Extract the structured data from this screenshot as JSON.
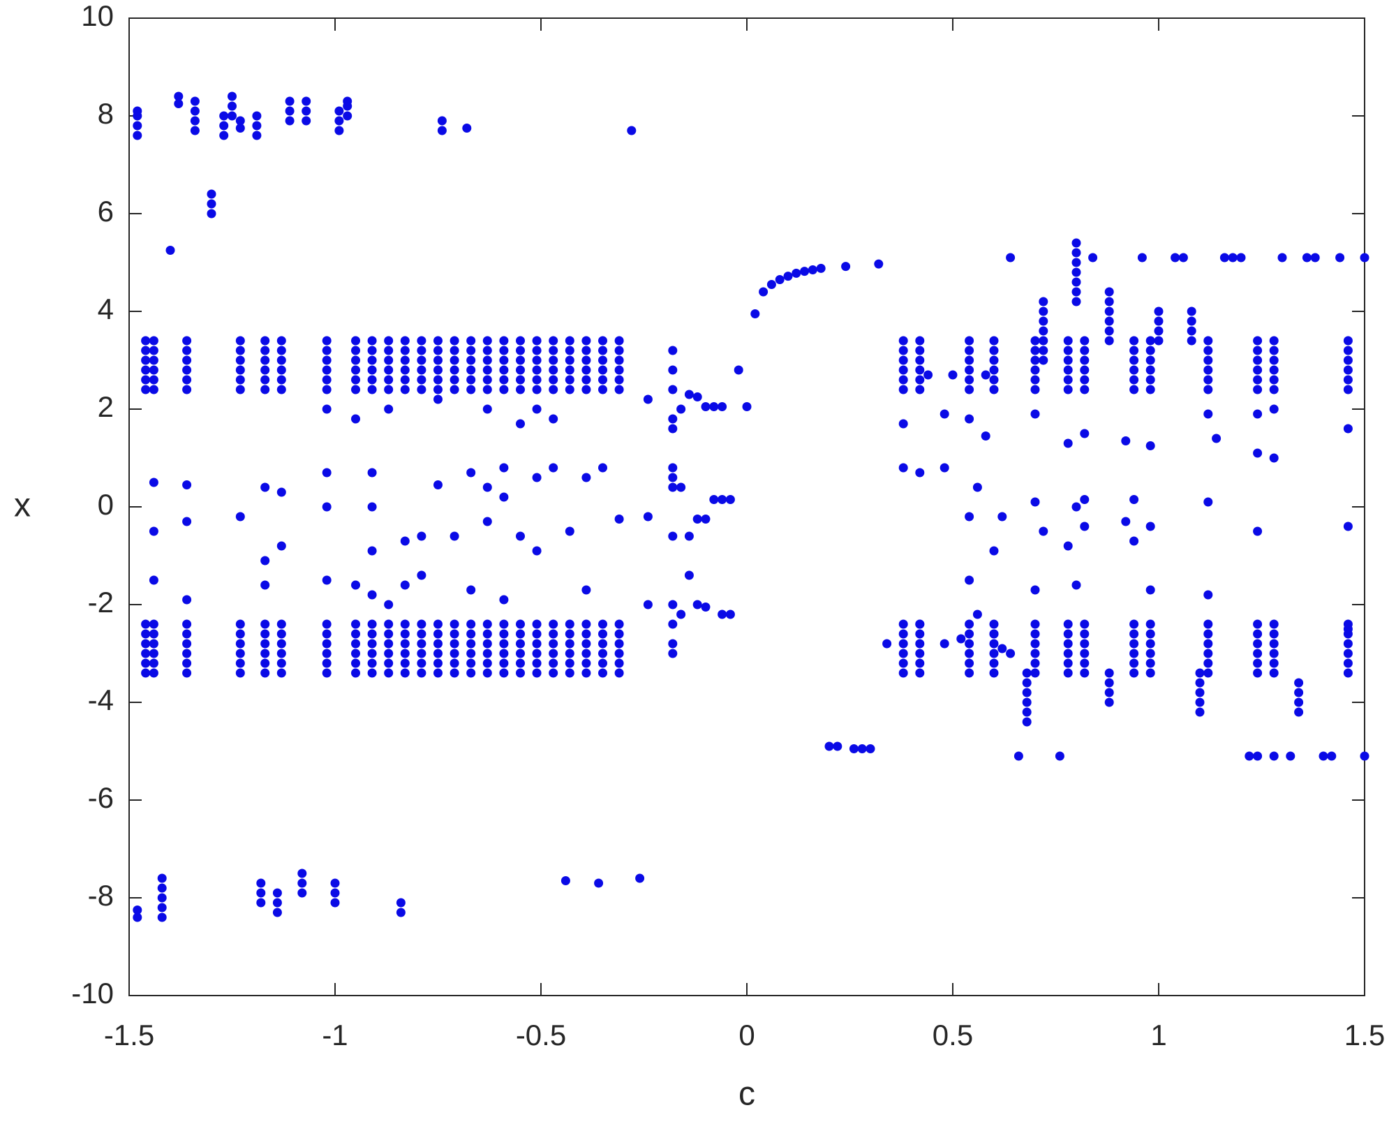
{
  "chart_data": {
    "type": "scatter",
    "xlabel": "c",
    "ylabel": "x",
    "color": "#0a0ae6",
    "xlim": [
      -1.5,
      1.5
    ],
    "ylim": [
      -10,
      10
    ],
    "xticks": [
      -1.5,
      -1,
      -0.5,
      0,
      0.5,
      1,
      1.5
    ],
    "yticks": [
      -10,
      -8,
      -6,
      -4,
      -2,
      0,
      2,
      4,
      6,
      8,
      10
    ],
    "x": [
      -1.46,
      -1.46,
      -1.46,
      -1.46,
      -1.46,
      -1.46,
      -1.46,
      -1.46,
      -1.46,
      -1.46,
      -1.46,
      -1.46,
      -1.44,
      -1.44,
      -1.44,
      -1.44,
      -1.44,
      -1.44,
      -1.44,
      -1.44,
      -1.44,
      -1.44,
      -1.44,
      -1.44,
      -1.36,
      -1.36,
      -1.36,
      -1.36,
      -1.36,
      -1.36,
      -1.36,
      -1.36,
      -1.36,
      -1.36,
      -1.36,
      -1.36,
      -1.23,
      -1.23,
      -1.23,
      -1.23,
      -1.23,
      -1.23,
      -1.23,
      -1.23,
      -1.23,
      -1.23,
      -1.23,
      -1.23,
      -1.17,
      -1.17,
      -1.17,
      -1.17,
      -1.17,
      -1.17,
      -1.17,
      -1.17,
      -1.17,
      -1.17,
      -1.17,
      -1.17,
      -1.13,
      -1.13,
      -1.13,
      -1.13,
      -1.13,
      -1.13,
      -1.13,
      -1.13,
      -1.13,
      -1.13,
      -1.13,
      -1.13,
      -1.02,
      -1.02,
      -1.02,
      -1.02,
      -1.02,
      -1.02,
      -1.02,
      -1.02,
      -1.02,
      -1.02,
      -1.02,
      -1.02,
      -0.95,
      -0.95,
      -0.95,
      -0.95,
      -0.95,
      -0.95,
      -0.95,
      -0.95,
      -0.95,
      -0.95,
      -0.95,
      -0.95,
      -0.91,
      -0.91,
      -0.91,
      -0.91,
      -0.91,
      -0.91,
      -0.91,
      -0.91,
      -0.91,
      -0.91,
      -0.91,
      -0.91,
      -0.87,
      -0.87,
      -0.87,
      -0.87,
      -0.87,
      -0.87,
      -0.87,
      -0.87,
      -0.87,
      -0.87,
      -0.87,
      -0.87,
      -0.83,
      -0.83,
      -0.83,
      -0.83,
      -0.83,
      -0.83,
      -0.83,
      -0.83,
      -0.83,
      -0.83,
      -0.83,
      -0.83,
      -0.79,
      -0.79,
      -0.79,
      -0.79,
      -0.79,
      -0.79,
      -0.79,
      -0.79,
      -0.79,
      -0.79,
      -0.79,
      -0.79,
      -0.75,
      -0.75,
      -0.75,
      -0.75,
      -0.75,
      -0.75,
      -0.75,
      -0.75,
      -0.75,
      -0.75,
      -0.75,
      -0.75,
      -0.71,
      -0.71,
      -0.71,
      -0.71,
      -0.71,
      -0.71,
      -0.71,
      -0.71,
      -0.71,
      -0.71,
      -0.71,
      -0.71,
      -0.67,
      -0.67,
      -0.67,
      -0.67,
      -0.67,
      -0.67,
      -0.67,
      -0.67,
      -0.67,
      -0.67,
      -0.67,
      -0.67,
      -0.63,
      -0.63,
      -0.63,
      -0.63,
      -0.63,
      -0.63,
      -0.63,
      -0.63,
      -0.63,
      -0.63,
      -0.63,
      -0.63,
      -0.59,
      -0.59,
      -0.59,
      -0.59,
      -0.59,
      -0.59,
      -0.59,
      -0.59,
      -0.59,
      -0.59,
      -0.59,
      -0.59,
      -0.55,
      -0.55,
      -0.55,
      -0.55,
      -0.55,
      -0.55,
      -0.55,
      -0.55,
      -0.55,
      -0.55,
      -0.55,
      -0.55,
      -0.51,
      -0.51,
      -0.51,
      -0.51,
      -0.51,
      -0.51,
      -0.51,
      -0.51,
      -0.51,
      -0.51,
      -0.51,
      -0.51,
      -0.47,
      -0.47,
      -0.47,
      -0.47,
      -0.47,
      -0.47,
      -0.47,
      -0.47,
      -0.47,
      -0.47,
      -0.47,
      -0.47,
      -0.43,
      -0.43,
      -0.43,
      -0.43,
      -0.43,
      -0.43,
      -0.43,
      -0.43,
      -0.43,
      -0.43,
      -0.43,
      -0.43,
      -0.39,
      -0.39,
      -0.39,
      -0.39,
      -0.39,
      -0.39,
      -0.39,
      -0.39,
      -0.39,
      -0.39,
      -0.39,
      -0.39,
      -0.35,
      -0.35,
      -0.35,
      -0.35,
      -0.35,
      -0.35,
      -0.35,
      -0.35,
      -0.35,
      -0.35,
      -0.35,
      -0.35,
      -0.31,
      -0.31,
      -0.31,
      -0.31,
      -0.31,
      -0.31,
      -0.31,
      -0.31,
      -0.31,
      -0.31,
      -0.31,
      -0.31,
      0.38,
      0.38,
      0.38,
      0.38,
      0.38,
      0.38,
      0.38,
      0.38,
      0.38,
      0.38,
      0.38,
      0.38,
      0.42,
      0.42,
      0.42,
      0.42,
      0.42,
      0.42,
      0.42,
      0.42,
      0.42,
      0.42,
      0.42,
      0.42,
      0.54,
      0.54,
      0.54,
      0.54,
      0.54,
      0.54,
      0.54,
      0.54,
      0.54,
      0.54,
      0.54,
      0.54,
      0.6,
      0.6,
      0.6,
      0.6,
      0.6,
      0.6,
      0.6,
      0.6,
      0.6,
      0.6,
      0.6,
      0.6,
      0.7,
      0.7,
      0.7,
      0.7,
      0.7,
      0.7,
      0.7,
      0.7,
      0.7,
      0.7,
      0.7,
      0.7,
      0.78,
      0.78,
      0.78,
      0.78,
      0.78,
      0.78,
      0.78,
      0.78,
      0.78,
      0.78,
      0.78,
      0.78,
      0.82,
      0.82,
      0.82,
      0.82,
      0.82,
      0.82,
      0.82,
      0.82,
      0.82,
      0.82,
      0.82,
      0.82,
      0.94,
      0.94,
      0.94,
      0.94,
      0.94,
      0.94,
      0.94,
      0.94,
      0.94,
      0.94,
      0.94,
      0.94,
      0.98,
      0.98,
      0.98,
      0.98,
      0.98,
      0.98,
      0.98,
      0.98,
      0.98,
      0.98,
      0.98,
      0.98,
      1.12,
      1.12,
      1.12,
      1.12,
      1.12,
      1.12,
      1.12,
      1.12,
      1.12,
      1.12,
      1.12,
      1.12,
      1.24,
      1.24,
      1.24,
      1.24,
      1.24,
      1.24,
      1.24,
      1.24,
      1.24,
      1.24,
      1.24,
      1.24,
      1.28,
      1.28,
      1.28,
      1.28,
      1.28,
      1.28,
      1.28,
      1.28,
      1.28,
      1.28,
      1.28,
      1.28,
      1.46,
      1.46,
      1.46,
      1.46,
      1.46,
      1.46,
      1.46,
      1.46,
      1.46,
      1.46,
      1.46,
      1.46,
      -1.48,
      -1.48,
      -1.48,
      -1.48,
      -1.38,
      -1.38,
      -1.34,
      -1.34,
      -1.34,
      -1.34,
      -1.3,
      -1.3,
      -1.3,
      -1.27,
      -1.27,
      -1.27,
      -1.25,
      -1.25,
      -1.25,
      -1.23,
      -1.23,
      -1.19,
      -1.19,
      -1.19,
      -1.11,
      -1.11,
      -1.11,
      -1.07,
      -1.07,
      -1.07,
      -0.99,
      -0.99,
      -0.99,
      -0.97,
      -0.97,
      -0.97,
      -0.74,
      -0.74,
      -0.68,
      -0.28,
      -1.4,
      -1.48,
      -1.48,
      -1.42,
      -1.42,
      -1.42,
      -1.42,
      -1.42,
      -1.18,
      -1.18,
      -1.18,
      -1.14,
      -1.14,
      -1.14,
      -1.08,
      -1.08,
      -1.08,
      -1,
      -1,
      -1,
      -0.84,
      -0.84,
      -0.44,
      -0.36,
      -0.26,
      0.72,
      0.72,
      0.72,
      0.72,
      0.72,
      0.72,
      0.72,
      0.8,
      0.8,
      0.8,
      0.8,
      0.8,
      0.8,
      0.8,
      0.88,
      0.88,
      0.88,
      0.88,
      0.88,
      0.88,
      1,
      1,
      1,
      1,
      1.08,
      1.08,
      1.08,
      1.08,
      0.68,
      0.68,
      0.68,
      0.68,
      0.68,
      0.68,
      0.88,
      0.88,
      0.88,
      0.88,
      1.1,
      1.1,
      1.1,
      1.1,
      1.1,
      1.34,
      1.34,
      1.34,
      1.34,
      0.02,
      0.04,
      0.06,
      0.08,
      0.1,
      0.12,
      0.14,
      0.16,
      0.18,
      0.24,
      0.32,
      0.64,
      0.84,
      0.96,
      1.04,
      1.06,
      1.16,
      1.18,
      1.2,
      1.3,
      1.36,
      1.38,
      1.44,
      1.5,
      0.66,
      0.76,
      1.22,
      1.24,
      1.28,
      1.32,
      1.4,
      1.42,
      1.5,
      0.2,
      0.22,
      0.26,
      0.28,
      0.3,
      -0.02,
      0,
      -0.06,
      -0.08,
      -0.1,
      -0.04,
      -0.06,
      -0.08,
      -0.04,
      -0.06,
      -0.1,
      -0.12,
      -0.14,
      -0.14,
      -0.12,
      -0.1,
      -0.14,
      -0.12,
      -0.18,
      -0.18,
      -0.18,
      -0.18,
      -0.18,
      -0.18,
      -0.18,
      -0.18,
      -0.18,
      -0.18,
      -0.18,
      -0.18,
      -0.18,
      -1.44,
      -1.44,
      -1.44,
      -1.36,
      -1.36,
      -1.36,
      -1.23,
      -1.17,
      -1.17,
      -1.17,
      -1.13,
      -1.13,
      -1.02,
      -1.02,
      -1.02,
      -1.02,
      -0.91,
      -0.91,
      -0.91,
      -0.91,
      -0.87,
      -0.83,
      -0.83,
      -0.79,
      -0.79,
      -0.75,
      -0.71,
      -0.67,
      -0.67,
      -0.63,
      -0.63,
      -0.59,
      -0.59,
      -0.59,
      -0.55,
      -0.51,
      -0.51,
      -0.47,
      -0.47,
      -0.43,
      -0.39,
      -0.39,
      -0.35,
      -0.31,
      -0.63,
      -0.55,
      -0.51,
      -0.75,
      -0.95,
      -0.95,
      -0.87,
      -0.24,
      -0.24,
      -0.24,
      -0.16,
      -0.16,
      -0.16,
      0.38,
      0.38,
      0.42,
      0.42,
      0.48,
      0.48,
      0.54,
      0.54,
      0.54,
      0.56,
      0.56,
      0.58,
      0.6,
      0.6,
      0.62,
      0.7,
      0.7,
      0.7,
      0.72,
      0.78,
      0.78,
      0.8,
      0.8,
      0.82,
      0.82,
      0.82,
      0.92,
      0.92,
      0.94,
      0.94,
      0.98,
      0.98,
      0.98,
      1.12,
      1.12,
      1.12,
      1.14,
      1.24,
      1.24,
      1.24,
      1.28,
      1.28,
      1.46,
      1.46,
      1.46,
      0.34,
      0.44,
      0.5,
      0.52,
      0.62,
      0.48,
      0.58,
      0.64
    ],
    "values": [
      2.4,
      2.6,
      2.8,
      3.0,
      3.2,
      3.4,
      -3.4,
      -3.2,
      -3.0,
      -2.8,
      -2.6,
      -2.4,
      2.4,
      2.6,
      2.8,
      3.0,
      3.2,
      3.4,
      -3.4,
      -3.2,
      -3.0,
      -2.8,
      -2.6,
      -2.4,
      2.4,
      2.6,
      2.8,
      3.0,
      3.2,
      3.4,
      -3.4,
      -3.2,
      -3.0,
      -2.8,
      -2.6,
      -2.4,
      2.4,
      2.6,
      2.8,
      3.0,
      3.2,
      3.4,
      -3.4,
      -3.2,
      -3.0,
      -2.8,
      -2.6,
      -2.4,
      2.4,
      2.6,
      2.8,
      3.0,
      3.2,
      3.4,
      -3.4,
      -3.2,
      -3.0,
      -2.8,
      -2.6,
      -2.4,
      2.4,
      2.6,
      2.8,
      3.0,
      3.2,
      3.4,
      -3.4,
      -3.2,
      -3.0,
      -2.8,
      -2.6,
      -2.4,
      2.4,
      2.6,
      2.8,
      3.0,
      3.2,
      3.4,
      -3.4,
      -3.2,
      -3.0,
      -2.8,
      -2.6,
      -2.4,
      2.4,
      2.6,
      2.8,
      3.0,
      3.2,
      3.4,
      -3.4,
      -3.2,
      -3.0,
      -2.8,
      -2.6,
      -2.4,
      2.4,
      2.6,
      2.8,
      3.0,
      3.2,
      3.4,
      -3.4,
      -3.2,
      -3.0,
      -2.8,
      -2.6,
      -2.4,
      2.4,
      2.6,
      2.8,
      3.0,
      3.2,
      3.4,
      -3.4,
      -3.2,
      -3.0,
      -2.8,
      -2.6,
      -2.4,
      2.4,
      2.6,
      2.8,
      3.0,
      3.2,
      3.4,
      -3.4,
      -3.2,
      -3.0,
      -2.8,
      -2.6,
      -2.4,
      2.4,
      2.6,
      2.8,
      3.0,
      3.2,
      3.4,
      -3.4,
      -3.2,
      -3.0,
      -2.8,
      -2.6,
      -2.4,
      2.4,
      2.6,
      2.8,
      3.0,
      3.2,
      3.4,
      -3.4,
      -3.2,
      -3.0,
      -2.8,
      -2.6,
      -2.4,
      2.4,
      2.6,
      2.8,
      3.0,
      3.2,
      3.4,
      -3.4,
      -3.2,
      -3.0,
      -2.8,
      -2.6,
      -2.4,
      2.4,
      2.6,
      2.8,
      3.0,
      3.2,
      3.4,
      -3.4,
      -3.2,
      -3.0,
      -2.8,
      -2.6,
      -2.4,
      2.4,
      2.6,
      2.8,
      3.0,
      3.2,
      3.4,
      -3.4,
      -3.2,
      -3.0,
      -2.8,
      -2.6,
      -2.4,
      2.4,
      2.6,
      2.8,
      3.0,
      3.2,
      3.4,
      -3.4,
      -3.2,
      -3.0,
      -2.8,
      -2.6,
      -2.4,
      2.4,
      2.6,
      2.8,
      3.0,
      3.2,
      3.4,
      -3.4,
      -3.2,
      -3.0,
      -2.8,
      -2.6,
      -2.4,
      2.4,
      2.6,
      2.8,
      3.0,
      3.2,
      3.4,
      -3.4,
      -3.2,
      -3.0,
      -2.8,
      -2.6,
      -2.4,
      2.4,
      2.6,
      2.8,
      3.0,
      3.2,
      3.4,
      -3.4,
      -3.2,
      -3.0,
      -2.8,
      -2.6,
      -2.4,
      2.4,
      2.6,
      2.8,
      3.0,
      3.2,
      3.4,
      -3.4,
      -3.2,
      -3.0,
      -2.8,
      -2.6,
      -2.4,
      2.4,
      2.6,
      2.8,
      3.0,
      3.2,
      3.4,
      -3.4,
      -3.2,
      -3.0,
      -2.8,
      -2.6,
      -2.4,
      2.4,
      2.6,
      2.8,
      3.0,
      3.2,
      3.4,
      -3.4,
      -3.2,
      -3.0,
      -2.8,
      -2.6,
      -2.4,
      2.4,
      2.6,
      2.8,
      3.0,
      3.2,
      3.4,
      -3.4,
      -3.2,
      -3.0,
      -2.8,
      -2.6,
      -2.4,
      2.4,
      2.6,
      2.8,
      3.0,
      3.2,
      3.4,
      -3.4,
      -3.2,
      -3.0,
      -2.8,
      -2.6,
      -2.4,
      2.4,
      2.6,
      2.8,
      3.0,
      3.2,
      3.4,
      -3.4,
      -3.2,
      -3.0,
      -2.8,
      -2.6,
      -2.4,
      2.4,
      2.6,
      2.8,
      3.0,
      3.2,
      3.4,
      -3.4,
      -3.2,
      -3.0,
      -2.8,
      -2.6,
      -2.4,
      2.4,
      2.6,
      2.8,
      3.0,
      3.2,
      3.4,
      -3.4,
      -3.2,
      -3.0,
      -2.8,
      -2.6,
      -2.4,
      2.4,
      2.6,
      2.8,
      3.0,
      3.2,
      3.4,
      -3.4,
      -3.2,
      -3.0,
      -2.8,
      -2.6,
      -2.4,
      2.4,
      2.6,
      2.8,
      3.0,
      3.2,
      3.4,
      -3.4,
      -3.2,
      -3.0,
      -2.8,
      -2.6,
      -2.4,
      2.4,
      2.6,
      2.8,
      3.0,
      3.2,
      3.4,
      -3.4,
      -3.2,
      -3.0,
      -2.8,
      -2.6,
      -2.4,
      2.4,
      2.6,
      2.8,
      3.0,
      3.2,
      3.4,
      -3.4,
      -3.2,
      -3.0,
      -2.8,
      -2.6,
      -2.4,
      2.4,
      2.6,
      2.8,
      3.0,
      3.2,
      3.4,
      -3.4,
      -3.2,
      -3.0,
      -2.8,
      -2.6,
      -2.4,
      2.4,
      2.6,
      2.8,
      3.0,
      3.2,
      3.4,
      -3.4,
      -3.2,
      -3.0,
      -2.8,
      -2.6,
      -2.4,
      2.4,
      2.6,
      2.8,
      3.0,
      3.2,
      3.4,
      -3.4,
      -3.2,
      -3.0,
      -2.8,
      -2.6,
      -2.4,
      2.4,
      2.6,
      2.8,
      3.0,
      3.2,
      3.4,
      -3.4,
      -3.2,
      -3.0,
      -2.8,
      -2.6,
      -2.4,
      2.4,
      2.6,
      2.8,
      3.0,
      3.2,
      3.4,
      -3.4,
      -3.2,
      -3.0,
      -2.8,
      -2.6,
      -2.4,
      7.6,
      7.8,
      8.0,
      8.1,
      8.25,
      8.4,
      7.7,
      7.9,
      8.1,
      8.3,
      6.0,
      6.2,
      6.4,
      7.6,
      7.8,
      8.0,
      8.0,
      8.2,
      8.4,
      7.75,
      7.9,
      7.6,
      7.8,
      8.0,
      7.9,
      8.1,
      8.3,
      7.9,
      8.1,
      8.3,
      7.7,
      7.9,
      8.1,
      8.0,
      8.2,
      8.3,
      7.7,
      7.9,
      7.75,
      7.7,
      5.25,
      -8.4,
      -8.25,
      -8.4,
      -8.2,
      -8.0,
      -7.8,
      -7.6,
      -8.1,
      -7.9,
      -7.7,
      -8.3,
      -8.1,
      -7.9,
      -7.9,
      -7.7,
      -7.5,
      -8.1,
      -7.9,
      -7.7,
      -8.3,
      -8.1,
      -7.65,
      -7.7,
      -7.6,
      3.0,
      3.2,
      3.4,
      3.6,
      3.8,
      4.0,
      4.2,
      4.2,
      4.4,
      4.6,
      4.8,
      5.0,
      5.2,
      5.4,
      3.4,
      3.6,
      3.8,
      4.0,
      4.2,
      4.4,
      3.4,
      3.6,
      3.8,
      4.0,
      3.4,
      3.6,
      3.8,
      4.0,
      -4.4,
      -4.2,
      -4.0,
      -3.8,
      -3.6,
      -3.4,
      -4.0,
      -3.8,
      -3.6,
      -3.4,
      -4.2,
      -4.0,
      -3.8,
      -3.6,
      -3.4,
      -4.2,
      -4.0,
      -3.8,
      -3.6,
      3.95,
      4.4,
      4.55,
      4.65,
      4.72,
      4.78,
      4.82,
      4.85,
      4.88,
      4.92,
      4.97,
      5.1,
      5.1,
      5.1,
      5.1,
      5.1,
      5.1,
      5.1,
      5.1,
      5.1,
      5.1,
      5.1,
      5.1,
      5.1,
      -5.1,
      -5.1,
      -5.1,
      -5.1,
      -5.1,
      -5.1,
      -5.1,
      -5.1,
      -5.1,
      -4.9,
      -4.9,
      -4.95,
      -4.95,
      -4.95,
      2.8,
      2.05,
      2.05,
      2.05,
      2.05,
      0.15,
      0.15,
      0.15,
      -2.2,
      -2.2,
      -2.05,
      -2.0,
      -1.4,
      -0.6,
      -0.25,
      -0.25,
      2.3,
      2.25,
      3.2,
      2.8,
      2.4,
      1.8,
      1.6,
      0.8,
      0.6,
      0.4,
      -0.6,
      -2.0,
      -2.4,
      -2.8,
      -3.0,
      0.5,
      -0.5,
      -1.5,
      0.45,
      -0.3,
      -1.9,
      -0.2,
      0.4,
      -1.1,
      -1.6,
      0.3,
      -0.8,
      0.7,
      0,
      -1.5,
      2.0,
      0.7,
      0,
      -0.9,
      -1.8,
      2.0,
      -0.7,
      -1.6,
      -0.6,
      -1.4,
      0.45,
      -0.6,
      0.7,
      -1.7,
      0.4,
      -0.3,
      0.8,
      0.2,
      -1.9,
      -0.6,
      0.6,
      -0.9,
      1.8,
      0.8,
      -0.5,
      0.6,
      -1.7,
      0.8,
      -0.25,
      2.0,
      1.7,
      2.0,
      2.2,
      1.8,
      -1.6,
      -2.0,
      -0.2,
      -2.0,
      2.2,
      -2.2,
      2.0,
      0.4,
      1.7,
      0.8,
      0.7,
      -2.4,
      1.9,
      0.8,
      1.8,
      -0.2,
      -1.5,
      0.4,
      -2.2,
      1.45,
      -0.9,
      -2.6,
      -0.2,
      1.9,
      0.1,
      -1.7,
      -0.5,
      1.3,
      -0.8,
      0,
      -1.6,
      1.5,
      0.15,
      -0.4,
      1.35,
      -0.3,
      0.15,
      -0.7,
      1.25,
      -0.4,
      -1.7,
      1.9,
      0.1,
      -1.8,
      1.4,
      1.1,
      -0.5,
      1.9,
      1.0,
      2.0,
      1.6,
      -0.4,
      -2.5,
      -2.8,
      2.7,
      2.7,
      -2.7,
      -2.9,
      -2.8,
      2.7,
      -3.0
    ]
  }
}
